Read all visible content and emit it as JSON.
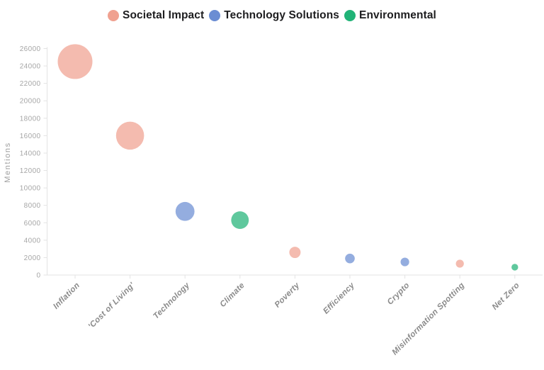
{
  "chart_data": {
    "type": "scatter",
    "subtype": "bubble",
    "title": "",
    "xlabel": "",
    "ylabel": "Mentions",
    "ylim": [
      0,
      26000
    ],
    "ytick_step": 2000,
    "grid": false,
    "legend_position": "top-center",
    "bubble_opacity": 0.72,
    "size_encoding": "area proportional to value",
    "categories": [
      "Inflation",
      "'Cost of Living'",
      "Technology",
      "Climate",
      "Poverty",
      "Efficiency",
      "Crypto",
      "Misinformation Spotting",
      "Net Zero"
    ],
    "series": [
      {
        "name": "Societal Impact",
        "color": "#F0A190",
        "points": [
          {
            "category": "Inflation",
            "value": 24500
          },
          {
            "category": "'Cost of Living'",
            "value": 16000
          },
          {
            "category": "Poverty",
            "value": 2600
          },
          {
            "category": "Misinformation Spotting",
            "value": 1300
          }
        ]
      },
      {
        "name": "Technology Solutions",
        "color": "#6B8DD3",
        "points": [
          {
            "category": "Technology",
            "value": 7300
          },
          {
            "category": "Efficiency",
            "value": 1900
          },
          {
            "category": "Crypto",
            "value": 1500
          }
        ]
      },
      {
        "name": "Environmental",
        "color": "#21B377",
        "points": [
          {
            "category": "Climate",
            "value": 6300
          },
          {
            "category": "Net Zero",
            "value": 900
          }
        ]
      }
    ],
    "colors": {
      "axis": "#e3e3e3",
      "ytick_label": "#a6a6a6",
      "xtick_label": "#8a8a8a",
      "axis_title": "#9e9e9e",
      "legend_text": "#1d1d1f"
    }
  }
}
